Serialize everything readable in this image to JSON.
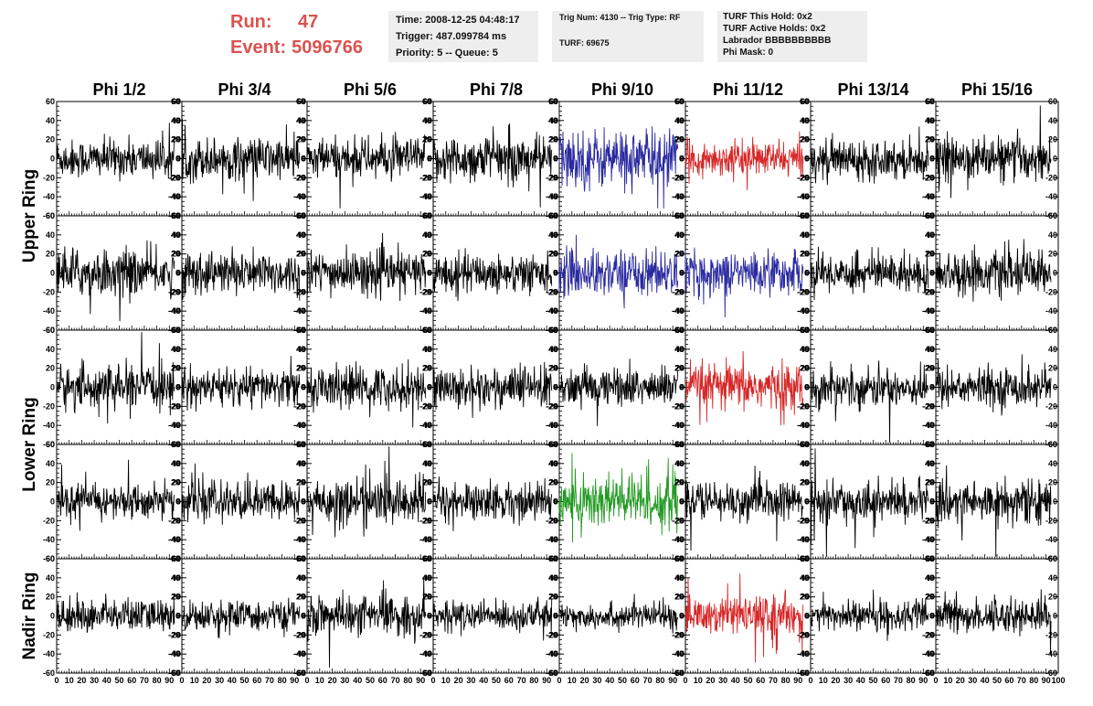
{
  "run": {
    "run_label": "Run:",
    "run_value": "47",
    "event_label": "Event:",
    "event_value": "5096766"
  },
  "info_time": {
    "time": "Time: 2008-12-25 04:48:17",
    "trigger": "Trigger: 487.099784 ms",
    "priority": "Priority: 5 -- Queue: 5"
  },
  "info_trig": {
    "trig": "Trig Num: 4130 -- Trig Type: RF",
    "turf": "TURF: 69675"
  },
  "info_turf": {
    "this_hold": "TURF This Hold: 0x2",
    "active_holds": "TURF Active Holds: 0x2",
    "labrador": "Labrador BBBBBBBBBB",
    "phi_mask": "Phi Mask: 0"
  },
  "columns": [
    "Phi 1/2",
    "Phi 3/4",
    "Phi 5/6",
    "Phi 7/8",
    "Phi 9/10",
    "Phi 11/12",
    "Phi 13/14",
    "Phi 15/16"
  ],
  "ring_labels": [
    "Upper Ring",
    "Lower Ring",
    "Nadir Ring"
  ],
  "colors": {
    "trace": "#000000",
    "blue": "#2a2aa0",
    "red": "#d62728",
    "green": "#229922",
    "run_text": "#d9534f",
    "info_bg": "#eeeeee"
  },
  "chart_data": {
    "type": "line",
    "rows": 5,
    "cols": 8,
    "xlim": [
      0,
      100
    ],
    "ylim": [
      -60,
      60
    ],
    "y_ticks": [
      60,
      40,
      20,
      0,
      -20,
      -40,
      -60
    ],
    "x_tick_labels": [
      "0",
      "10",
      "20",
      "30",
      "40",
      "50",
      "60",
      "70",
      "80",
      "90",
      "100"
    ],
    "samples_per_trace": 260,
    "x_range_plotted": [
      0,
      94
    ],
    "trace_colors": [
      [
        "black",
        "black",
        "black",
        "black",
        "blue",
        "red",
        "black",
        "black"
      ],
      [
        "black",
        "black",
        "black",
        "black",
        "blue",
        "blue",
        "black",
        "black"
      ],
      [
        "black",
        "black",
        "black",
        "black",
        "black",
        "red",
        "black",
        "black"
      ],
      [
        "black",
        "black",
        "black",
        "black",
        "green",
        "black",
        "black",
        "black"
      ],
      [
        "black",
        "black",
        "black",
        "black",
        "black",
        "red",
        "black",
        "black"
      ]
    ],
    "amplitudes": [
      [
        18,
        20,
        19,
        22,
        28,
        16,
        18,
        20
      ],
      [
        22,
        20,
        20,
        18,
        22,
        20,
        18,
        20
      ],
      [
        20,
        18,
        20,
        20,
        18,
        22,
        18,
        18
      ],
      [
        16,
        18,
        22,
        18,
        28,
        18,
        18,
        20
      ],
      [
        16,
        14,
        18,
        14,
        12,
        18,
        14,
        16
      ]
    ]
  }
}
